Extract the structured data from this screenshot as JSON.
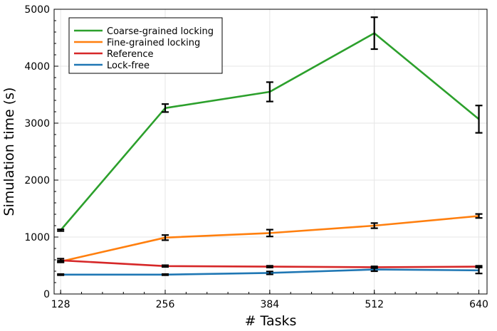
{
  "chart_data": {
    "type": "line",
    "title": "",
    "xlabel": "# Tasks",
    "ylabel": "Simulation time (s)",
    "x": [
      128,
      256,
      384,
      512,
      640
    ],
    "x_ticks": [
      "128",
      "256",
      "384",
      "512",
      "640"
    ],
    "y_ticks": [
      "0",
      "1000",
      "2000",
      "3000",
      "4000",
      "5000"
    ],
    "xlim": [
      120,
      650
    ],
    "ylim": [
      0,
      5000
    ],
    "grid": true,
    "legend_position": "top-left",
    "series": [
      {
        "name": "Coarse-grained locking",
        "color": "#2ca02c",
        "values": [
          1120,
          3265,
          3550,
          4580,
          3070
        ],
        "err": [
          15,
          70,
          170,
          280,
          240
        ]
      },
      {
        "name": "Fine-grained locking",
        "color": "#ff7f0e",
        "values": [
          570,
          990,
          1070,
          1200,
          1370
        ],
        "err": [
          15,
          45,
          60,
          45,
          35
        ]
      },
      {
        "name": "Reference",
        "color": "#d62728",
        "values": [
          590,
          490,
          480,
          470,
          480
        ],
        "err": [
          30,
          15,
          15,
          15,
          15
        ]
      },
      {
        "name": "Lock-free",
        "color": "#1f77b4",
        "values": [
          340,
          340,
          370,
          430,
          415
        ],
        "err": [
          10,
          10,
          25,
          30,
          55
        ]
      }
    ]
  }
}
